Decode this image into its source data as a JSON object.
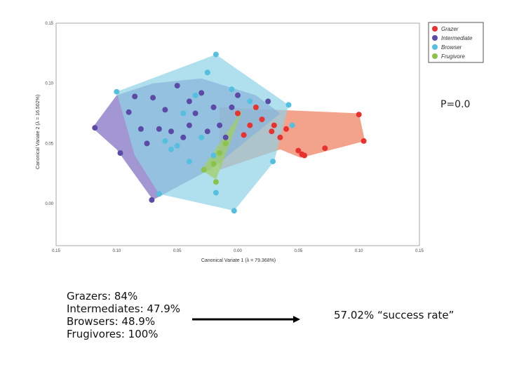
{
  "chart_data": {
    "type": "scatter",
    "xlabel": "Canonical Variate 1 (λ = 79.368%)",
    "ylabel": "Canonical Variate 2 (λ = 16.502%)",
    "xlim": [
      -0.15,
      0.15
    ],
    "ylim": [
      -0.035,
      0.15
    ],
    "x_ticks": [
      -0.15,
      -0.1,
      -0.05,
      0.0,
      0.05,
      0.1,
      0.15
    ],
    "x_tick_labels": [
      "0.15",
      "0.10",
      "0.05",
      "0.00",
      "0.05",
      "0.10",
      "0.15"
    ],
    "y_ticks": [
      0.0,
      0.05,
      0.1,
      0.15
    ],
    "y_tick_labels": [
      "0.00",
      "0.05",
      "0.10",
      "0.15"
    ],
    "legend_position": "top-right",
    "series": [
      {
        "name": "Grazer",
        "color": "#e8322f",
        "hull_color": "#ee7a5a",
        "hull": [
          [
            -0.015,
            0.08
          ],
          [
            0.1,
            0.075
          ],
          [
            0.105,
            0.052
          ],
          [
            0.052,
            0.038
          ],
          [
            0.035,
            0.045
          ],
          [
            -0.015,
            0.028
          ]
        ],
        "points": [
          [
            0.1,
            0.074
          ],
          [
            0.104,
            0.052
          ],
          [
            0.072,
            0.046
          ],
          [
            0.053,
            0.041
          ],
          [
            0.05,
            0.044
          ],
          [
            0.055,
            0.04
          ],
          [
            0.03,
            0.065
          ],
          [
            0.028,
            0.06
          ],
          [
            0.01,
            0.065
          ],
          [
            0.02,
            0.07
          ],
          [
            0.035,
            0.055
          ],
          [
            0.0,
            0.075
          ],
          [
            0.015,
            0.08
          ],
          [
            0.04,
            0.062
          ],
          [
            0.005,
            0.057
          ]
        ]
      },
      {
        "name": "Intermediate",
        "color": "#5b4aa6",
        "hull_color": "#7b6bc0",
        "hull": [
          [
            -0.12,
            0.063
          ],
          [
            -0.1,
            0.09
          ],
          [
            -0.07,
            0.1
          ],
          [
            -0.03,
            0.104
          ],
          [
            0.015,
            0.09
          ],
          [
            0.035,
            0.075
          ],
          [
            -0.02,
            0.03
          ],
          [
            -0.07,
            0.003
          ],
          [
            -0.1,
            0.045
          ]
        ],
        "points": [
          [
            -0.118,
            0.063
          ],
          [
            -0.097,
            0.042
          ],
          [
            -0.071,
            0.003
          ],
          [
            -0.09,
            0.076
          ],
          [
            -0.085,
            0.089
          ],
          [
            -0.07,
            0.088
          ],
          [
            -0.05,
            0.098
          ],
          [
            -0.03,
            0.092
          ],
          [
            -0.06,
            0.078
          ],
          [
            -0.055,
            0.06
          ],
          [
            -0.065,
            0.062
          ],
          [
            -0.04,
            0.065
          ],
          [
            -0.025,
            0.06
          ],
          [
            -0.01,
            0.055
          ],
          [
            0.0,
            0.09
          ],
          [
            -0.02,
            0.08
          ],
          [
            -0.035,
            0.075
          ],
          [
            -0.015,
            0.065
          ],
          [
            -0.075,
            0.05
          ],
          [
            -0.045,
            0.055
          ],
          [
            0.025,
            0.085
          ],
          [
            -0.005,
            0.08
          ],
          [
            -0.08,
            0.062
          ],
          [
            -0.04,
            0.085
          ]
        ]
      },
      {
        "name": "Browser",
        "color": "#55bfe0",
        "hull_color": "#8fd3e6",
        "hull": [
          [
            -0.1,
            0.093
          ],
          [
            -0.018,
            0.124
          ],
          [
            0.042,
            0.082
          ],
          [
            0.03,
            0.035
          ],
          [
            -0.003,
            -0.006
          ],
          [
            -0.065,
            0.008
          ],
          [
            -0.085,
            0.04
          ]
        ],
        "points": [
          [
            -0.1,
            0.093
          ],
          [
            -0.018,
            0.124
          ],
          [
            -0.025,
            0.109
          ],
          [
            0.042,
            0.082
          ],
          [
            0.029,
            0.035
          ],
          [
            -0.003,
            -0.006
          ],
          [
            -0.065,
            0.008
          ],
          [
            -0.018,
            0.009
          ],
          [
            -0.045,
            0.075
          ],
          [
            -0.06,
            0.052
          ],
          [
            -0.05,
            0.048
          ],
          [
            -0.03,
            0.055
          ],
          [
            -0.02,
            0.04
          ],
          [
            -0.005,
            0.095
          ],
          [
            0.01,
            0.085
          ],
          [
            -0.035,
            0.09
          ],
          [
            -0.055,
            0.045
          ],
          [
            0.045,
            0.065
          ],
          [
            -0.04,
            0.035
          ],
          [
            -0.01,
            0.05
          ]
        ]
      },
      {
        "name": "Frugivore",
        "color": "#8bc34a",
        "hull_color": "#a3cf5a",
        "hull": [
          [
            0.004,
            0.078
          ],
          [
            -0.03,
            0.028
          ],
          [
            -0.018,
            0.02
          ]
        ],
        "points": [
          [
            -0.018,
            0.018
          ],
          [
            -0.028,
            0.028
          ],
          [
            -0.02,
            0.033
          ],
          [
            -0.015,
            0.042
          ],
          [
            -0.01,
            0.05
          ]
        ]
      }
    ]
  },
  "stats": {
    "p_value": "P=0.0",
    "rates": [
      "Grazers: 84%",
      "Intermediates: 47.9%",
      "Browsers: 48.9%",
      "Frugivores: 100%"
    ],
    "summary": "57.02% “success rate”"
  }
}
